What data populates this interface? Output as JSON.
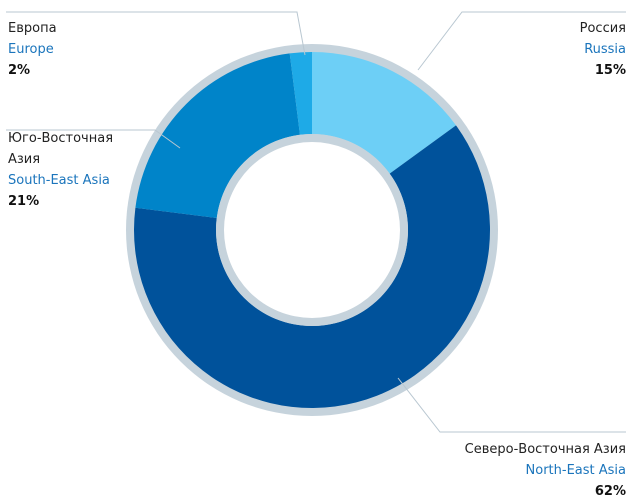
{
  "chart_data": {
    "type": "donut",
    "categories": [
      "Россия",
      "Северо-Восточная Азия",
      "Юго-Восточная Азия",
      "Европа"
    ],
    "categories_en": [
      "Russia",
      "North-East Asia",
      "South-East Asia",
      "Europe"
    ],
    "values": [
      15,
      62,
      21,
      2
    ],
    "value_labels": [
      "15%",
      "62%",
      "21%",
      "2%"
    ],
    "colors": [
      "#6dcff6",
      "#00529b",
      "#0084c9",
      "#1eaae7"
    ]
  }
}
